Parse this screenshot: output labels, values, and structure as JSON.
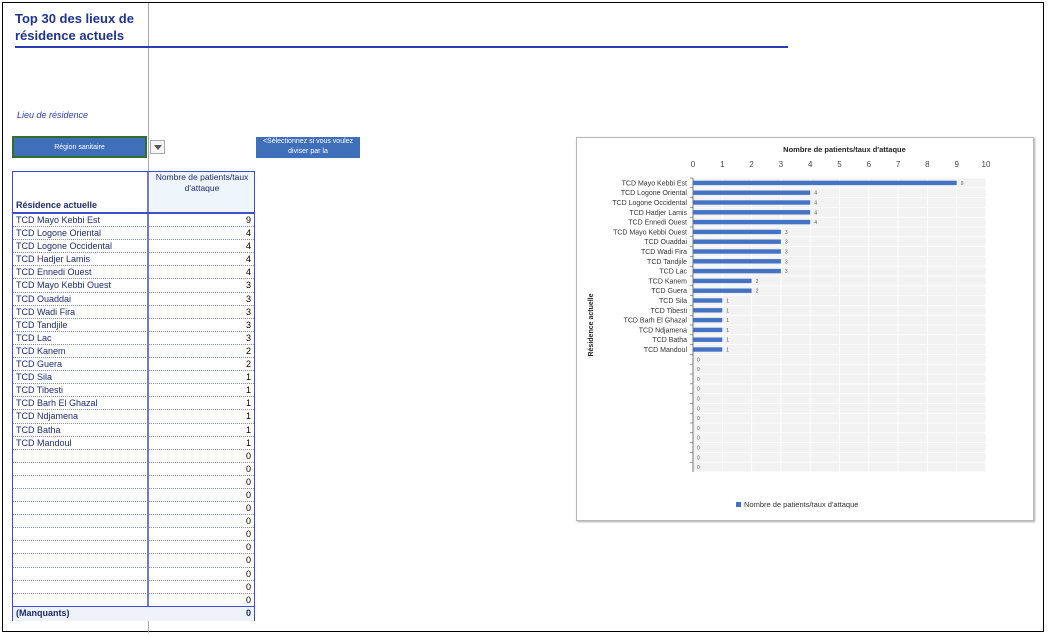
{
  "title": "Top 30 des lieux de résidence actuels",
  "lieu_label": "Lieu de résidence",
  "region_button": "Région sanitaire",
  "select_hint": "<Sélectionnez si vous voulez diviser par la",
  "table": {
    "col1_header": "Résidence actuelle",
    "col2_header": "Nombre de patients/taux d'attaque",
    "rows": [
      {
        "name": "TCD Mayo Kebbi Est",
        "value": "9"
      },
      {
        "name": "TCD Logone Oriental",
        "value": "4"
      },
      {
        "name": "TCD Logone Occidental",
        "value": "4"
      },
      {
        "name": "TCD Hadjer Lamis",
        "value": "4"
      },
      {
        "name": "TCD Ennedi Ouest",
        "value": "4"
      },
      {
        "name": "TCD Mayo Kebbi Ouest",
        "value": "3"
      },
      {
        "name": "TCD Ouaddai",
        "value": "3"
      },
      {
        "name": "TCD Wadi Fira",
        "value": "3"
      },
      {
        "name": "TCD Tandjile",
        "value": "3"
      },
      {
        "name": "TCD Lac",
        "value": "3"
      },
      {
        "name": "TCD Kanem",
        "value": "2"
      },
      {
        "name": "TCD Guera",
        "value": "2"
      },
      {
        "name": "TCD Sila",
        "value": "1"
      },
      {
        "name": "TCD Tibesti",
        "value": "1"
      },
      {
        "name": "TCD Barh El Ghazal",
        "value": "1"
      },
      {
        "name": "TCD Ndjamena",
        "value": "1"
      },
      {
        "name": "TCD Batha",
        "value": "1"
      },
      {
        "name": "TCD Mandoul",
        "value": "1"
      },
      {
        "name": "",
        "value": "0"
      },
      {
        "name": "",
        "value": "0"
      },
      {
        "name": "",
        "value": "0"
      },
      {
        "name": "",
        "value": "0"
      },
      {
        "name": "",
        "value": "0"
      },
      {
        "name": "",
        "value": "0"
      },
      {
        "name": "",
        "value": "0"
      },
      {
        "name": "",
        "value": "0"
      },
      {
        "name": "",
        "value": "0"
      },
      {
        "name": "",
        "value": "0"
      },
      {
        "name": "",
        "value": "0"
      },
      {
        "name": "",
        "value": "0"
      }
    ],
    "missing_label": "(Manquants)",
    "missing_value": "0"
  },
  "colors": {
    "bar": "#4472c4",
    "accent": "#2a3cb4"
  },
  "chart_data": {
    "type": "bar",
    "orientation": "horizontal",
    "title": "Nombre de patients/taux d'attaque",
    "ylabel": "Résidence actuelle",
    "xlim": [
      0,
      10
    ],
    "x_ticks": [
      0,
      1,
      2,
      3,
      4,
      5,
      6,
      7,
      8,
      9,
      10
    ],
    "categories": [
      "TCD Mayo Kebbi Est",
      "TCD Logone Oriental",
      "TCD Logone Occidental",
      "TCD Hadjer Lamis",
      "TCD Ennedi Ouest",
      "TCD Mayo Kebbi Ouest",
      "TCD Ouaddai",
      "TCD Wadi Fira",
      "TCD Tandjile",
      "TCD Lac",
      "TCD Kanem",
      "TCD Guera",
      "TCD Sila",
      "TCD Tibesti",
      "TCD Barh El Ghazal",
      "TCD Ndjamena",
      "TCD Batha",
      "TCD Mandoul",
      "",
      "",
      "",
      "",
      "",
      "",
      "",
      "",
      "",
      "",
      "",
      ""
    ],
    "series": [
      {
        "name": "Nombre de patients/taux d'attaque",
        "values": [
          9,
          4,
          4,
          4,
          4,
          3,
          3,
          3,
          3,
          3,
          2,
          2,
          1,
          1,
          1,
          1,
          1,
          1,
          0,
          0,
          0,
          0,
          0,
          0,
          0,
          0,
          0,
          0,
          0,
          0
        ]
      }
    ],
    "grid": true,
    "legend": "bottom"
  }
}
